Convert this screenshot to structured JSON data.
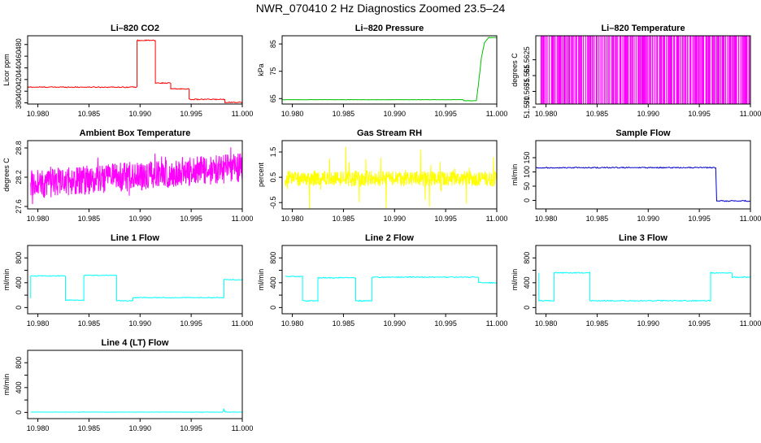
{
  "figure": {
    "title": "NWR_070410  2 Hz Diagnostics Zoomed 23.5–24"
  },
  "chart_data": [
    {
      "type": "line",
      "title": "Li–820 CO2",
      "ylabel": "Licor ppm",
      "color": "#ff0000",
      "xlim": [
        10.979,
        11.0
      ],
      "ylim": [
        378,
        495
      ],
      "xticks": [
        10.98,
        10.985,
        10.99,
        10.995,
        11.0
      ],
      "xtick_labels": [
        "10.980",
        "10.985",
        "10.990",
        "10.995",
        "11.000"
      ],
      "yticks": [
        380,
        420,
        460
      ],
      "ytick_labels": [
        "380",
        "420",
        "460"
      ],
      "yticks_minor": [
        400,
        440,
        480
      ],
      "ytick_minor_labels": [
        "400",
        "440",
        "480"
      ],
      "noise": 0.8,
      "segments": [
        {
          "x": [
            10.979,
            10.9897
          ],
          "y": [
            407,
            407
          ]
        },
        {
          "x": [
            10.9897,
            10.9897,
            10.9915
          ],
          "y": [
            407,
            487,
            487
          ]
        },
        {
          "x": [
            10.9915,
            10.9915,
            10.993
          ],
          "y": [
            487,
            414,
            414
          ]
        },
        {
          "x": [
            10.993,
            10.993,
            10.9948
          ],
          "y": [
            414,
            404,
            404
          ]
        },
        {
          "x": [
            10.9948,
            10.9948,
            10.9983
          ],
          "y": [
            404,
            386,
            386
          ]
        },
        {
          "x": [
            10.9983,
            10.9983,
            11.0
          ],
          "y": [
            386,
            381,
            381
          ]
        }
      ]
    },
    {
      "type": "line",
      "title": "Li–820 Pressure",
      "ylabel": "kPa",
      "color": "#00c000",
      "xlim": [
        10.979,
        11.0
      ],
      "ylim": [
        63,
        88
      ],
      "xticks": [
        10.98,
        10.985,
        10.99,
        10.995,
        11.0
      ],
      "xtick_labels": [
        "10.980",
        "10.985",
        "10.990",
        "10.995",
        "11.000"
      ],
      "yticks": [
        65,
        75,
        85
      ],
      "ytick_labels": [
        "65",
        "75",
        "85"
      ],
      "noise": 0.05,
      "segments": [
        {
          "x": [
            10.979,
            10.9967,
            10.9968,
            10.998
          ],
          "y": [
            64.6,
            64.6,
            64.2,
            64.2
          ]
        },
        {
          "x": [
            10.998,
            10.9982,
            10.9985,
            10.9988,
            10.9992,
            11.0
          ],
          "y": [
            64.2,
            70,
            80,
            85.5,
            87.3,
            87.4
          ]
        }
      ]
    },
    {
      "type": "line",
      "title": "Li–820 Temperature",
      "ylabel": "degrees C",
      "color": "#ff00ff",
      "xlim": [
        10.979,
        11.0
      ],
      "ylim": [
        51.5695,
        51.5587
      ],
      "xticks": [
        10.98,
        10.985,
        10.99,
        10.995,
        11.0
      ],
      "xtick_labels": [
        "10.980",
        "10.985",
        "10.990",
        "10.995",
        "11.000"
      ],
      "yticks": [
        51.57,
        51.565
      ],
      "ytick_labels": [
        "51.570",
        "51.565"
      ],
      "yticks_minor": [
        51.5675,
        51.5625
      ],
      "ytick_minor_labels": [
        "51.5675",
        "51.5625"
      ],
      "binary_levels": [
        51.5695,
        51.5587
      ],
      "binary_transitions": 170
    },
    {
      "type": "line",
      "title": "Ambient Box Temperature",
      "ylabel": "degrees C",
      "color": "#ff00ff",
      "xlim": [
        10.979,
        11.0
      ],
      "ylim": [
        27.55,
        28.95
      ],
      "xticks": [
        10.98,
        10.985,
        10.99,
        10.995,
        11.0
      ],
      "xtick_labels": [
        "10.980",
        "10.985",
        "10.990",
        "10.995",
        "11.000"
      ],
      "yticks": [
        27.6,
        28.2,
        28.8
      ],
      "ytick_labels": [
        "27.6",
        "28.2",
        "28.8"
      ],
      "noise_band": {
        "start": 28.05,
        "end": 28.4,
        "spread": 0.3,
        "spikes": 0.45
      }
    },
    {
      "type": "line",
      "title": "Gas Stream RH",
      "ylabel": "percent",
      "color": "#ffff00",
      "xlim": [
        10.979,
        11.0
      ],
      "ylim": [
        -0.75,
        1.95
      ],
      "xticks": [
        10.98,
        10.985,
        10.99,
        10.995,
        11.0
      ],
      "xtick_labels": [
        "10.980",
        "10.985",
        "10.990",
        "10.995",
        "11.000"
      ],
      "yticks": [
        -0.5,
        0.5,
        1.5
      ],
      "ytick_labels": [
        "-0.5",
        "0.5",
        "1.5"
      ],
      "noise_band": {
        "start": 0.45,
        "end": 0.45,
        "spread": 0.3,
        "spikes": 1.25
      }
    },
    {
      "type": "line",
      "title": "Sample Flow",
      "ylabel": "ml/min",
      "color": "#0000cc",
      "xlim": [
        10.979,
        11.0
      ],
      "ylim": [
        -30,
        210
      ],
      "xticks": [
        10.98,
        10.985,
        10.99,
        10.995,
        11.0
      ],
      "xtick_labels": [
        "10.980",
        "10.985",
        "10.990",
        "10.995",
        "11.000"
      ],
      "yticks": [
        0,
        50,
        100,
        150
      ],
      "ytick_labels": [
        "0",
        "50",
        "100",
        "150"
      ],
      "noise": 2,
      "segments": [
        {
          "x": [
            10.979,
            10.9966,
            10.9967,
            11.0
          ],
          "y": [
            115,
            115,
            -2,
            -2
          ]
        }
      ]
    },
    {
      "type": "line",
      "title": "Line 1 Flow",
      "ylabel": "ml/min",
      "color": "#00ffff",
      "xlim": [
        10.979,
        11.0
      ],
      "ylim": [
        -100,
        1000
      ],
      "xticks": [
        10.98,
        10.985,
        10.99,
        10.995,
        11.0
      ],
      "xtick_labels": [
        "10.980",
        "10.985",
        "10.990",
        "10.995",
        "11.000"
      ],
      "yticks": [
        0,
        200,
        400,
        600,
        800
      ],
      "ytick_labels": [
        "0",
        "",
        "400",
        "",
        "800"
      ],
      "noise": 6,
      "segments": [
        {
          "x": [
            10.9793,
            10.9793,
            10.9827,
            10.9827,
            10.9845,
            10.9845,
            10.9877,
            10.9877,
            10.9893,
            10.9893,
            10.9982,
            10.9982,
            11.0
          ],
          "y": [
            150,
            510,
            510,
            120,
            120,
            520,
            520,
            110,
            110,
            160,
            160,
            450,
            450
          ]
        }
      ]
    },
    {
      "type": "line",
      "title": "Line 2 Flow",
      "ylabel": "ml/min",
      "color": "#00ffff",
      "xlim": [
        10.979,
        11.0
      ],
      "ylim": [
        -100,
        1000
      ],
      "xticks": [
        10.98,
        10.985,
        10.99,
        10.995,
        11.0
      ],
      "xtick_labels": [
        "10.980",
        "10.985",
        "10.990",
        "10.995",
        "11.000"
      ],
      "yticks": [
        0,
        200,
        400,
        600,
        800
      ],
      "ytick_labels": [
        "0",
        "",
        "400",
        "",
        "800"
      ],
      "noise": 8,
      "segments": [
        {
          "x": [
            10.9793,
            10.981,
            10.981,
            10.9825,
            10.9825,
            10.9862,
            10.9862,
            10.9878,
            10.9878,
            10.9982,
            10.9982,
            11.0
          ],
          "y": [
            500,
            500,
            110,
            110,
            480,
            480,
            110,
            110,
            490,
            490,
            400,
            400
          ]
        }
      ]
    },
    {
      "type": "line",
      "title": "Line 3 Flow",
      "ylabel": "ml/min",
      "color": "#00ffff",
      "xlim": [
        10.979,
        11.0
      ],
      "ylim": [
        -100,
        1000
      ],
      "xticks": [
        10.98,
        10.985,
        10.99,
        10.995,
        11.0
      ],
      "xtick_labels": [
        "10.980",
        "10.985",
        "10.990",
        "10.995",
        "11.000"
      ],
      "yticks": [
        0,
        200,
        400,
        600,
        800
      ],
      "ytick_labels": [
        "0",
        "",
        "400",
        "",
        "800"
      ],
      "noise": 8,
      "segments": [
        {
          "x": [
            10.9793,
            10.9793,
            10.9808,
            10.9808,
            10.9843,
            10.9843,
            10.9961,
            10.9961,
            10.9982,
            10.9982,
            11.0
          ],
          "y": [
            560,
            110,
            110,
            560,
            560,
            110,
            110,
            560,
            560,
            490,
            490
          ]
        }
      ]
    },
    {
      "type": "line",
      "title": "Line 4 (LT) Flow",
      "ylabel": "ml/min",
      "color": "#00ffff",
      "xlim": [
        10.979,
        11.0
      ],
      "ylim": [
        -100,
        1000
      ],
      "xticks": [
        10.98,
        10.985,
        10.99,
        10.995,
        11.0
      ],
      "xtick_labels": [
        "10.980",
        "10.985",
        "10.990",
        "10.995",
        "11.000"
      ],
      "yticks": [
        0,
        200,
        400,
        600,
        800
      ],
      "ytick_labels": [
        "0",
        "",
        "400",
        "",
        "800"
      ],
      "noise": 2,
      "segments": [
        {
          "x": [
            10.9793,
            10.9981,
            10.9982,
            10.9983,
            10.9985,
            11.0
          ],
          "y": [
            5,
            5,
            60,
            10,
            5,
            5
          ]
        }
      ]
    }
  ]
}
